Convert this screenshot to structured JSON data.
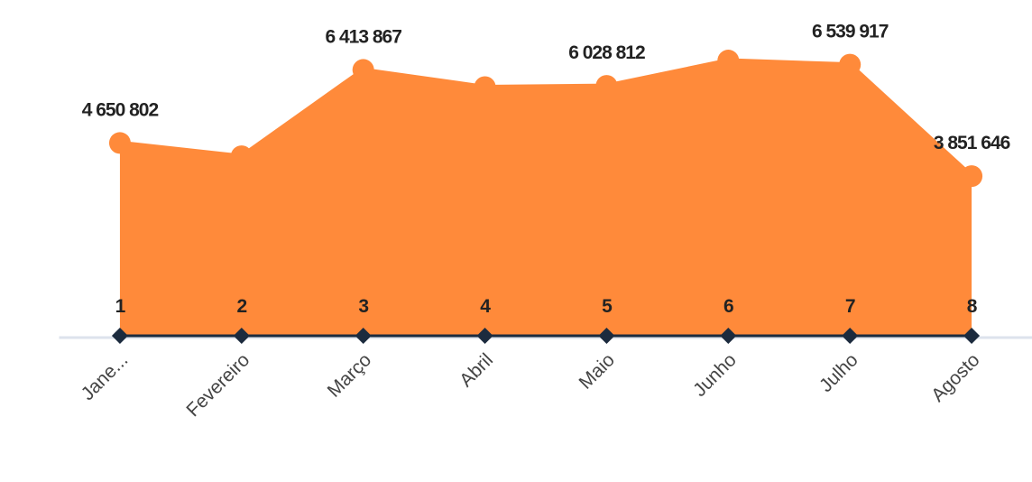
{
  "chart_data": {
    "type": "area",
    "categories": [
      "Jane...",
      "Fevereiro",
      "Março",
      "Abril",
      "Maio",
      "Junho",
      "Julho",
      "Agosto"
    ],
    "series": [
      {
        "color": "#ff8a3a",
        "values": [
          4650802,
          4330000,
          6413867,
          6000000,
          6028812,
          6640000,
          6539917,
          3851646
        ],
        "value_labels": [
          "4 650 802",
          null,
          "6 413 867",
          null,
          "6 028 812",
          null,
          "6 539 917",
          "3 851 646"
        ]
      },
      {
        "color": "#1c2b3e",
        "values": [
          1,
          2,
          3,
          4,
          5,
          6,
          7,
          8
        ]
      }
    ],
    "ylim": [
      0,
      8100000
    ]
  }
}
